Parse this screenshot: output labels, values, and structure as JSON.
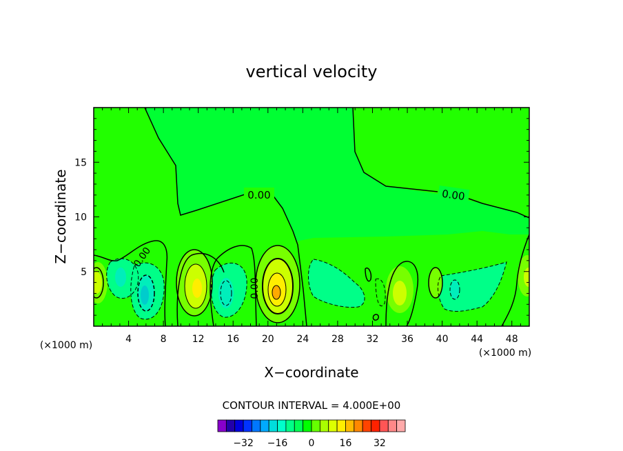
{
  "chart_data": {
    "type": "heatmap",
    "title": "vertical velocity",
    "xlabel": "X−coordinate",
    "ylabel": "Z−coordinate",
    "x_unit_left": "(×1000 m)",
    "x_unit_right": "(×1000 m)",
    "xlim": [
      0,
      50
    ],
    "ylim": [
      0,
      20
    ],
    "x_ticks": [
      "4",
      "8",
      "12",
      "16",
      "20",
      "24",
      "28",
      "32",
      "36",
      "40",
      "44",
      "48"
    ],
    "y_ticks": [
      "5",
      "10",
      "15"
    ],
    "contour_labels": [
      "0.00",
      "0.00",
      "0.00",
      "0.00"
    ],
    "contour_interval_text": "CONTOUR INTERVAL = 4.000E+00",
    "colorbar": {
      "tick_labels": [
        "−32",
        "−16",
        "0",
        "16",
        "32"
      ],
      "tick_values": [
        -32,
        -16,
        0,
        16,
        32
      ],
      "colors": [
        "#8800cc",
        "#2200aa",
        "#0000dd",
        "#0033ff",
        "#0077ff",
        "#00aaff",
        "#00dddd",
        "#00ffcc",
        "#00ff88",
        "#00ff55",
        "#00ff00",
        "#66ff00",
        "#aaff00",
        "#ddff00",
        "#ffee00",
        "#ffbb00",
        "#ff8800",
        "#ff4400",
        "#ff2200",
        "#ff5555",
        "#ff8888",
        "#ffaaaa"
      ]
    },
    "field_colors": {
      "background_zero": "#22ff00",
      "upper_weak_negative": "#00ff33",
      "weak_negative": "#00ff88",
      "moderate_negative": "#00eebb",
      "strong_negative": "#00cccc",
      "weak_positive": "#77ff00",
      "moderate_positive": "#ccff00",
      "strong_positive": "#ffee00",
      "peak_positive": "#ffaa00"
    }
  }
}
